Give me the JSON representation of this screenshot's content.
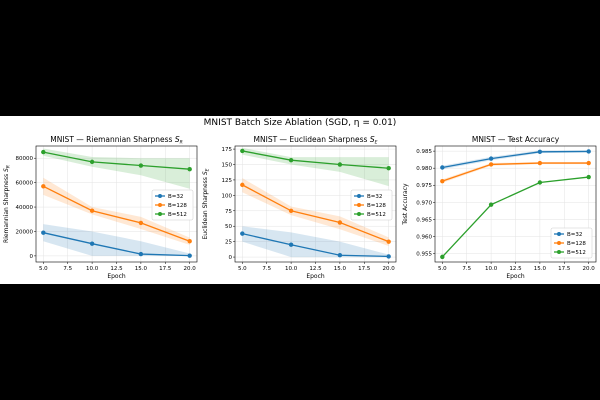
{
  "figure": {
    "suptitle": "MNIST Batch Size Ablation (SGD, η = 0.01)"
  },
  "colors": {
    "B=32": "#1f77b4",
    "B=128": "#ff7f0e",
    "B=512": "#2ca02c"
  },
  "chart_data": [
    {
      "type": "line",
      "title": "MNIST — Riemannian Sharpness S_R",
      "xlabel": "Epoch",
      "ylabel": "Riemannian Sharpness S_R",
      "x": [
        5,
        10,
        15,
        20
      ],
      "xlim": [
        4.25,
        20.75
      ],
      "ylim": [
        -5000,
        90000
      ],
      "xticks": [
        "5.0",
        "7.5",
        "10.0",
        "12.5",
        "15.0",
        "17.5",
        "20.0"
      ],
      "xtick_values": [
        5,
        7.5,
        10,
        12.5,
        15,
        17.5,
        20
      ],
      "yticks": [
        "0",
        "20000",
        "40000",
        "60000",
        "80000"
      ],
      "ytick_values": [
        0,
        20000,
        40000,
        60000,
        80000
      ],
      "grid": true,
      "legend": "center-right",
      "series": [
        {
          "name": "B=32",
          "values": [
            19000,
            10000,
            1500,
            200
          ],
          "lower": [
            12000,
            0,
            0,
            0
          ],
          "upper": [
            26000,
            20000,
            12000,
            2000
          ]
        },
        {
          "name": "B=128",
          "values": [
            57000,
            37000,
            27000,
            12000
          ],
          "lower": [
            50000,
            34000,
            22000,
            9000
          ],
          "upper": [
            64000,
            40000,
            32000,
            15000
          ]
        },
        {
          "name": "B=512",
          "values": [
            85000,
            77000,
            74000,
            71000
          ],
          "lower": [
            82000,
            73000,
            66000,
            55000
          ],
          "upper": [
            88000,
            81000,
            80000,
            80000
          ]
        }
      ]
    },
    {
      "type": "line",
      "title": "MNIST — Euclidean Sharpness S_E",
      "xlabel": "Epoch",
      "ylabel": "Euclidean Sharpness S_E",
      "x": [
        5,
        10,
        15,
        20
      ],
      "xlim": [
        4.25,
        20.75
      ],
      "ylim": [
        -8,
        180
      ],
      "xticks": [
        "5.0",
        "7.5",
        "10.0",
        "12.5",
        "15.0",
        "17.5",
        "20.0"
      ],
      "xtick_values": [
        5,
        7.5,
        10,
        12.5,
        15,
        17.5,
        20
      ],
      "yticks": [
        "0",
        "25",
        "50",
        "75",
        "100",
        "125",
        "150",
        "175"
      ],
      "ytick_values": [
        0,
        25,
        50,
        75,
        100,
        125,
        150,
        175
      ],
      "grid": true,
      "legend": "center-right",
      "series": [
        {
          "name": "B=32",
          "values": [
            38,
            20,
            3,
            1
          ],
          "lower": [
            25,
            0,
            0,
            0
          ],
          "upper": [
            50,
            40,
            25,
            4
          ]
        },
        {
          "name": "B=128",
          "values": [
            117,
            75,
            56,
            25
          ],
          "lower": [
            105,
            68,
            45,
            18
          ],
          "upper": [
            128,
            82,
            66,
            32
          ]
        },
        {
          "name": "B=512",
          "values": [
            172,
            157,
            150,
            144
          ],
          "lower": [
            166,
            150,
            138,
            115
          ],
          "upper": [
            177,
            162,
            162,
            162
          ]
        }
      ]
    },
    {
      "type": "line",
      "title": "MNIST — Test Accuracy",
      "xlabel": "Epoch",
      "ylabel": "Test Accuracy",
      "x": [
        5,
        10,
        15,
        20
      ],
      "xlim": [
        4.25,
        20.75
      ],
      "ylim": [
        0.9525,
        0.9865
      ],
      "xticks": [
        "5.0",
        "7.5",
        "10.0",
        "12.5",
        "15.0",
        "17.5",
        "20.0"
      ],
      "xtick_values": [
        5,
        7.5,
        10,
        12.5,
        15,
        17.5,
        20
      ],
      "yticks": [
        "0.955",
        "0.960",
        "0.965",
        "0.970",
        "0.975",
        "0.980",
        "0.985"
      ],
      "ytick_values": [
        0.955,
        0.96,
        0.965,
        0.97,
        0.975,
        0.98,
        0.985
      ],
      "grid": true,
      "legend": "lower-right",
      "series": [
        {
          "name": "B=32",
          "values": [
            0.9802,
            0.9828,
            0.9848,
            0.9849
          ],
          "lower": [
            0.9797,
            0.9823,
            0.9844,
            0.9846
          ],
          "upper": [
            0.9807,
            0.9833,
            0.9852,
            0.9852
          ]
        },
        {
          "name": "B=128",
          "values": [
            0.9762,
            0.9811,
            0.9815,
            0.9815
          ],
          "lower": [
            0.9757,
            0.9807,
            0.9812,
            0.9812
          ],
          "upper": [
            0.9767,
            0.9815,
            0.9818,
            0.9818
          ]
        },
        {
          "name": "B=512",
          "values": [
            0.954,
            0.9693,
            0.9758,
            0.9774
          ],
          "lower": [
            0.954,
            0.9693,
            0.9758,
            0.9774
          ],
          "upper": [
            0.954,
            0.9693,
            0.9758,
            0.9774
          ]
        }
      ]
    }
  ]
}
